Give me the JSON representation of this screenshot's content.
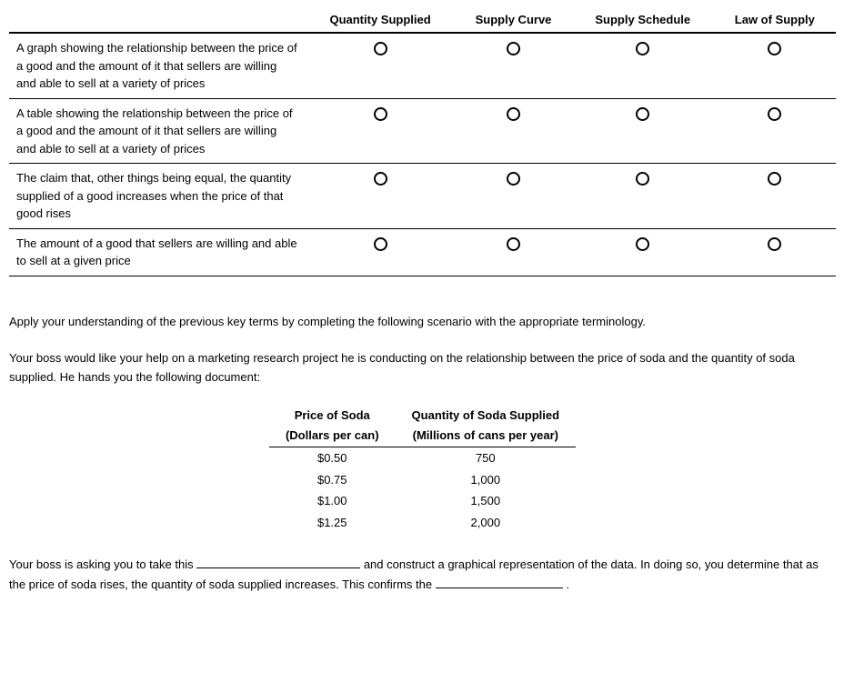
{
  "match_table": {
    "columns": [
      "",
      "Quantity Supplied",
      "Supply Curve",
      "Supply Schedule",
      "Law of Supply"
    ],
    "definitions": [
      "A graph showing the relationship between the price of a good and the amount of it that sellers are willing and able to sell at a variety of prices",
      "A table showing the relationship between the price of a good and the amount of it that sellers are willing and able to sell at a variety of prices",
      "The claim that, other things being equal, the quantity supplied of a good increases when the price of that good rises",
      "The amount of a good that sellers are willing and able to sell at a given price"
    ]
  },
  "scenario": {
    "intro": "Apply your understanding of the previous key terms by completing the following scenario with the appropriate terminology.",
    "body": "Your boss would like your help on a marketing research project he is conducting on the relationship between the price of soda and the quantity of soda supplied. He hands you the following document:"
  },
  "data_table": {
    "col1_head_line1": "Price of Soda",
    "col1_head_line2": "(Dollars per can)",
    "col2_head_line1": "Quantity of Soda Supplied",
    "col2_head_line2": "(Millions of cans per year)",
    "rows": [
      {
        "price": "$0.50",
        "qty": "750"
      },
      {
        "price": "$0.75",
        "qty": "1,000"
      },
      {
        "price": "$1.00",
        "qty": "1,500"
      },
      {
        "price": "$1.25",
        "qty": "2,000"
      }
    ]
  },
  "fill": {
    "part1": "Your boss is asking you to take this ",
    "part2": " and construct a graphical representation of the data. In doing so, you determine that as the price of soda rises, the quantity of soda supplied increases. This confirms the ",
    "part3": " ."
  }
}
